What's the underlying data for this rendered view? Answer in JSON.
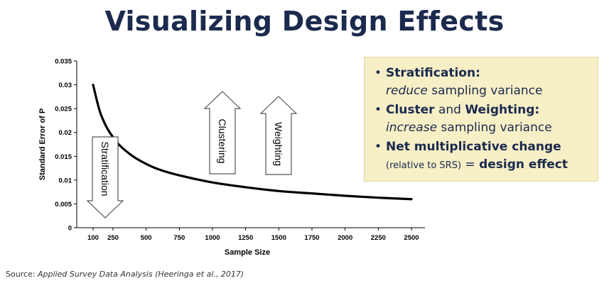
{
  "slide": {
    "title": "Visualizing Design Effects"
  },
  "chart_data": {
    "type": "line",
    "title": "",
    "xlabel": "Sample Size",
    "ylabel": "Standard Error of P",
    "x_ticks": [
      100,
      250,
      500,
      750,
      1000,
      1250,
      1500,
      1750,
      2000,
      2250,
      2500
    ],
    "y_ticks": [
      0,
      0.005,
      0.01,
      0.015,
      0.02,
      0.025,
      0.03,
      0.035
    ],
    "y_tick_labels": [
      "0",
      "0.005",
      "0.01",
      "0.015",
      "0.02",
      "0.025",
      "0.03",
      "0.035"
    ],
    "xlim": [
      0,
      2600
    ],
    "ylim": [
      0,
      0.035
    ],
    "series": [
      {
        "x": [
          100,
          150,
          200,
          250,
          300,
          400,
          500,
          600,
          750,
          1000,
          1250,
          1500,
          1750,
          2000,
          2250,
          2500
        ],
        "y": [
          0.03,
          0.0245,
          0.0212,
          0.019,
          0.0173,
          0.015,
          0.0134,
          0.0122,
          0.011,
          0.0095,
          0.0085,
          0.0077,
          0.0072,
          0.0067,
          0.0063,
          0.006
        ]
      }
    ],
    "annotations": [
      {
        "text": "Stratification",
        "direction": "down"
      },
      {
        "text": "Clustering",
        "direction": "up"
      },
      {
        "text": "Weighting",
        "direction": "up"
      }
    ],
    "grid": false
  },
  "panel": {
    "bullet": "•",
    "items": [
      {
        "bold": "Stratification:",
        "line2_italic": "reduce",
        "line2_rest": " sampling variance"
      },
      {
        "bold_a": "Cluster",
        "mid": " and ",
        "bold_b": "Weighting:",
        "line2_italic": "increase",
        "line2_rest": " sampling variance"
      },
      {
        "bold": "Net multiplicative change",
        "line2_small": "(relative to SRS)",
        "line2_eq": " = ",
        "line2_bold": "design effect"
      }
    ]
  },
  "source": {
    "prefix": "Source: ",
    "italic": "Applied Survey Data Analysis (Heeringa et al., 2017)"
  }
}
